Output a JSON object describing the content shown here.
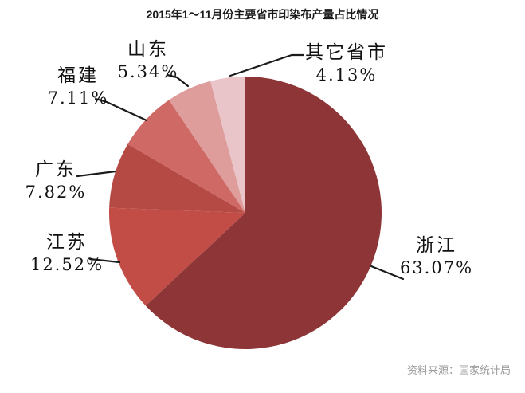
{
  "title": "2015年1～11月份主要省市印染布产量占比情况",
  "source": "资料来源：国家统计局",
  "chart_data": {
    "type": "pie",
    "title": "2015年1～11月份主要省市印染布产量占比情况",
    "start_angle_deg": 0,
    "direction": "clockwise",
    "legend": "none",
    "labels_position": "outside-with-leader-lines",
    "slices": [
      {
        "id": "zhejiang",
        "name": "浙江",
        "value": 63.07,
        "pct_label": "63.07%",
        "color": "#8E3637"
      },
      {
        "id": "jiangsu",
        "name": "江苏",
        "value": 12.52,
        "pct_label": "12.52%",
        "color": "#C24D46"
      },
      {
        "id": "guangdong",
        "name": "广东",
        "value": 7.82,
        "pct_label": "7.82%",
        "color": "#B54A45"
      },
      {
        "id": "fujian",
        "name": "福建",
        "value": 7.11,
        "pct_label": "7.11%",
        "color": "#CE6965"
      },
      {
        "id": "shandong",
        "name": "山东",
        "value": 5.34,
        "pct_label": "5.34%",
        "color": "#DE9C9B"
      },
      {
        "id": "other",
        "name": "其它省市",
        "value": 4.13,
        "pct_label": "4.13%",
        "color": "#E9C5C9"
      }
    ]
  }
}
